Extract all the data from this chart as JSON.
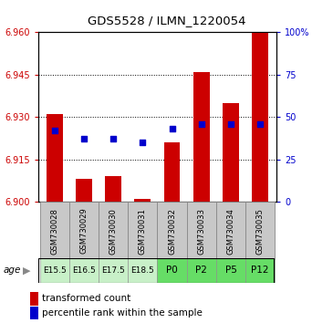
{
  "title": "GDS5528 / ILMN_1220054",
  "samples": [
    "GSM730028",
    "GSM730029",
    "GSM730030",
    "GSM730031",
    "GSM730032",
    "GSM730033",
    "GSM730034",
    "GSM730035"
  ],
  "age_labels": [
    "E15.5",
    "E16.5",
    "E17.5",
    "E18.5",
    "P0",
    "P2",
    "P5",
    "P12"
  ],
  "age_colors_embryo": "#c8f0c8",
  "age_colors_postnatal": "#66dd66",
  "age_is_postnatal": [
    false,
    false,
    false,
    false,
    true,
    true,
    true,
    true
  ],
  "transformed_count": [
    6.931,
    6.908,
    6.909,
    6.901,
    6.921,
    6.946,
    6.935,
    6.96
  ],
  "percentile_rank": [
    42,
    37,
    37,
    35,
    43,
    46,
    46,
    46
  ],
  "ylim_left": [
    6.9,
    6.96
  ],
  "ylim_right": [
    0,
    100
  ],
  "yticks_left": [
    6.9,
    6.915,
    6.93,
    6.945,
    6.96
  ],
  "yticks_right": [
    0,
    25,
    50,
    75,
    100
  ],
  "bar_color": "#cc0000",
  "dot_color": "#0000cc",
  "bar_bottom": 6.9,
  "legend_red": "transformed count",
  "legend_blue": "percentile rank within the sample",
  "left_tick_color": "#cc0000",
  "right_tick_color": "#0000cc",
  "sample_box_color": "#c8c8c8",
  "sample_box_border": "#888888"
}
